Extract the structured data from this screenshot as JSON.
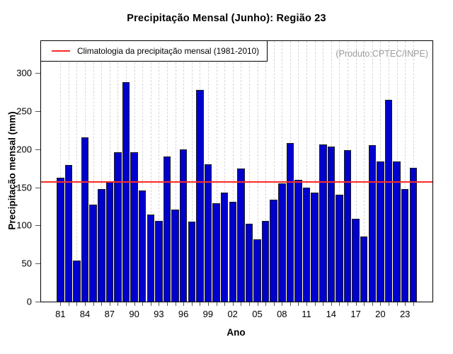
{
  "header": {
    "title": "Precipitação Mensal (Junho): Região 23"
  },
  "annotations": {
    "legend_label": "Climatologia da precipitação mensal (1981-2010)",
    "source_label": "(Produto:CPTEC/INPE)"
  },
  "colors": {
    "bar_fill": "#0101CD",
    "bar_border": "#1c1c1c",
    "climatology_line": "#fb2a24",
    "grid_line": "#d7d7d7",
    "source_text": "#9b9b9b"
  },
  "chart_data": {
    "type": "bar",
    "title": "Precipitação Mensal (Junho): Região 23",
    "xlabel": "Ano",
    "ylabel": "Precipitação mensal (mm)",
    "ylim": [
      0,
      342
    ],
    "yticks": [
      0,
      50,
      100,
      150,
      200,
      250,
      300
    ],
    "grid": "vertical-dashed",
    "legend_position": "top-left",
    "legend_entries": [
      "Climatologia da precipitação mensal (1981-2010)"
    ],
    "climatology_value": 157,
    "x_label_step": 3,
    "categories": [
      "81",
      "82",
      "83",
      "84",
      "85",
      "86",
      "87",
      "88",
      "89",
      "90",
      "91",
      "92",
      "93",
      "94",
      "95",
      "96",
      "97",
      "98",
      "99",
      "00",
      "01",
      "02",
      "03",
      "04",
      "05",
      "06",
      "07",
      "08",
      "09",
      "10",
      "11",
      "12",
      "13",
      "14",
      "15",
      "16",
      "17",
      "18",
      "19",
      "20",
      "21",
      "22",
      "23",
      "24"
    ],
    "values": [
      163,
      179,
      54,
      216,
      127,
      148,
      158,
      196,
      288,
      196,
      146,
      114,
      106,
      191,
      121,
      200,
      105,
      278,
      180,
      129,
      143,
      131,
      175,
      102,
      82,
      106,
      134,
      155,
      208,
      160,
      150,
      143,
      206,
      204,
      140,
      199,
      109,
      86,
      205,
      184,
      265,
      184,
      148,
      176
    ]
  }
}
